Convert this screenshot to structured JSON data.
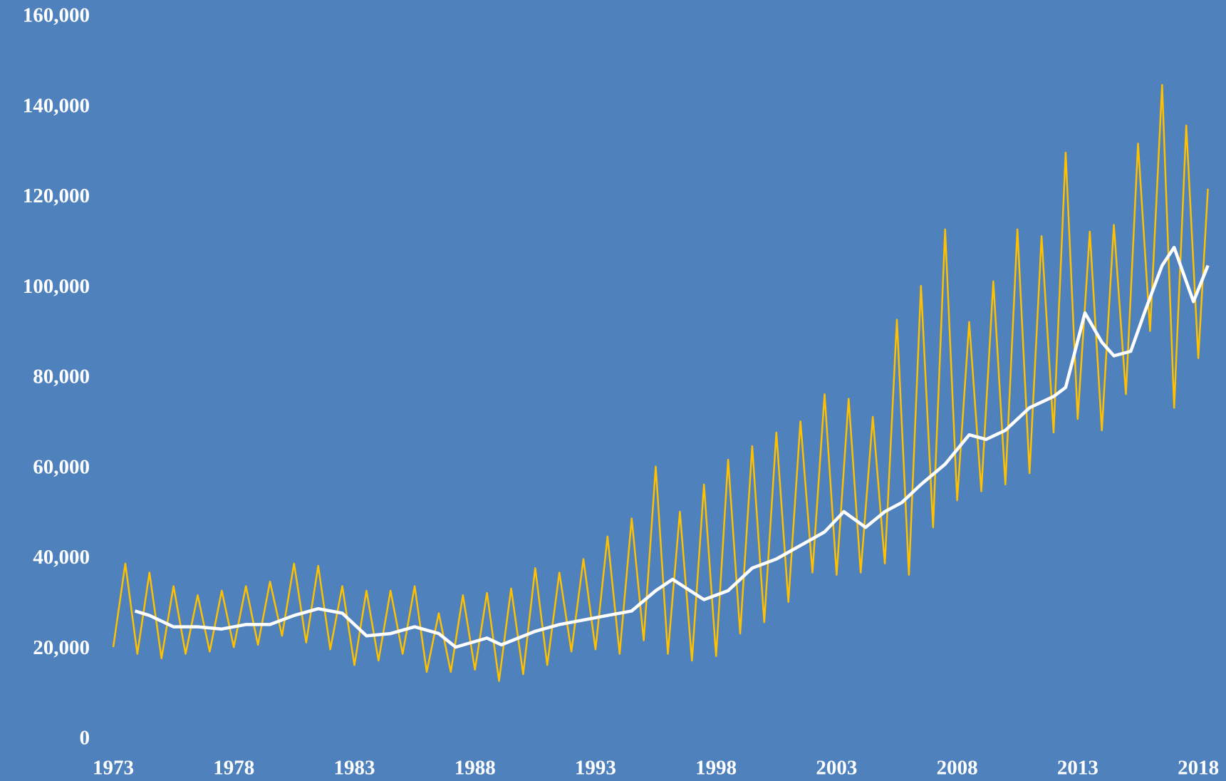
{
  "chart_data": {
    "type": "line",
    "xlim": [
      1973,
      2018.5
    ],
    "xticks": [
      1973,
      1978,
      1983,
      1988,
      1993,
      1998,
      2003,
      2008,
      2013,
      2018
    ],
    "ylim": [
      0,
      160000
    ],
    "yticks": [
      0,
      {
        "value": 20000,
        "label": "20,000"
      },
      {
        "value": 40000,
        "label": "40,000"
      },
      {
        "value": 60000,
        "label": "60,000"
      },
      {
        "value": 80000,
        "label": "80,000"
      },
      {
        "value": 100000,
        "label": "100,000"
      },
      {
        "value": 120000,
        "label": "120,000"
      },
      {
        "value": 140000,
        "label": "140,000"
      },
      {
        "value": 160000,
        "label": "160,000"
      }
    ],
    "grid": false,
    "series": [
      {
        "color": "#FFC000",
        "x": [
          1973.0,
          1973.5,
          1974.0,
          1974.5,
          1975.0,
          1975.5,
          1976.0,
          1976.5,
          1977.0,
          1977.5,
          1978.0,
          1978.5,
          1979.0,
          1979.5,
          1980.0,
          1980.5,
          1981.0,
          1981.5,
          1982.0,
          1982.5,
          1983.0,
          1983.5,
          1984.0,
          1984.5,
          1985.0,
          1985.5,
          1986.0,
          1986.5,
          1987.0,
          1987.5,
          1988.0,
          1988.5,
          1989.0,
          1989.5,
          1990.0,
          1990.5,
          1991.0,
          1991.5,
          1992.0,
          1992.5,
          1993.0,
          1993.5,
          1994.0,
          1994.5,
          1995.0,
          1995.5,
          1996.0,
          1996.5,
          1997.0,
          1997.5,
          1998.0,
          1998.5,
          1999.0,
          1999.5,
          2000.0,
          2000.5,
          2001.0,
          2001.5,
          2002.0,
          2002.5,
          2003.0,
          2003.5,
          2004.0,
          2004.5,
          2005.0,
          2005.5,
          2006.0,
          2006.5,
          2007.0,
          2007.5,
          2008.0,
          2008.5,
          2009.0,
          2009.5,
          2010.0,
          2010.5,
          2011.0,
          2011.5,
          2012.0,
          2012.5,
          2013.0,
          2013.5,
          2014.0,
          2014.5,
          2015.0,
          2015.5,
          2016.0,
          2016.5,
          2017.0,
          2017.5,
          2018.0,
          2018.4
        ],
        "values": [
          20500,
          39000,
          19000,
          37000,
          18000,
          34000,
          19000,
          32000,
          19500,
          33000,
          20500,
          34000,
          21000,
          35000,
          23000,
          39000,
          21500,
          38500,
          20000,
          34000,
          16500,
          33000,
          17500,
          33000,
          19000,
          34000,
          15000,
          28000,
          15000,
          32000,
          15500,
          32500,
          13000,
          33500,
          14500,
          38000,
          16500,
          37000,
          19500,
          40000,
          20000,
          45000,
          19000,
          49000,
          22000,
          60500,
          19000,
          50500,
          17500,
          56500,
          18500,
          62000,
          23500,
          65000,
          26000,
          68000,
          30500,
          70500,
          37000,
          76500,
          36500,
          75500,
          37000,
          71500,
          39000,
          93000,
          36500,
          100500,
          47000,
          113000,
          53000,
          92500,
          55000,
          101500,
          56500,
          113000,
          59000,
          111500,
          68000,
          130000,
          71000,
          112500,
          68500,
          114000,
          76500,
          132000,
          90500,
          145000,
          73500,
          136000,
          84500,
          122000
        ]
      },
      {
        "color": "#FFFFFF",
        "x": [
          1973.9,
          1974.5,
          1975.5,
          1976.5,
          1977.5,
          1978.5,
          1979.5,
          1980.5,
          1981.5,
          1982.5,
          1983.5,
          1984.5,
          1985.5,
          1986.5,
          1987.2,
          1988.5,
          1989.1,
          1989.8,
          1990.5,
          1991.5,
          1992.5,
          1993.5,
          1994.5,
          1995.5,
          1996.2,
          1997.5,
          1998.5,
          1999.5,
          2000.5,
          2001.5,
          2002.5,
          2003.3,
          2004.2,
          2005.0,
          2005.7,
          2006.5,
          2007.5,
          2008.5,
          2009.2,
          2010.0,
          2011.0,
          2012.0,
          2012.5,
          2013.3,
          2014.0,
          2014.5,
          2015.2,
          2015.8,
          2016.5,
          2017.0,
          2017.8,
          2018.4
        ],
        "values": [
          28500,
          27500,
          25000,
          25000,
          24500,
          25500,
          25500,
          27500,
          29000,
          28000,
          23000,
          23500,
          25000,
          23500,
          20500,
          22500,
          21000,
          22500,
          24000,
          25500,
          26500,
          27500,
          28500,
          33000,
          35500,
          31000,
          33000,
          38000,
          40000,
          43000,
          46000,
          50500,
          47000,
          50500,
          52500,
          56500,
          61000,
          67500,
          66500,
          68500,
          73500,
          76000,
          78000,
          94500,
          88000,
          85000,
          86000,
          95000,
          105000,
          109000,
          97000,
          105000
        ]
      }
    ]
  }
}
